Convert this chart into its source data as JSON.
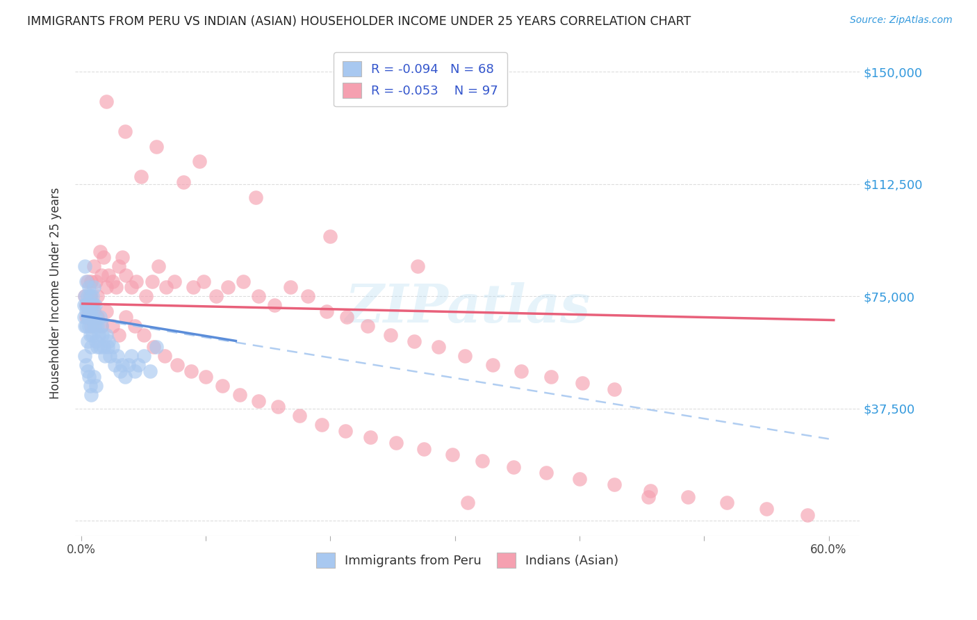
{
  "title": "IMMIGRANTS FROM PERU VS INDIAN (ASIAN) HOUSEHOLDER INCOME UNDER 25 YEARS CORRELATION CHART",
  "source": "Source: ZipAtlas.com",
  "ylabel": "Householder Income Under 25 years",
  "legend_label_1": "Immigrants from Peru",
  "legend_label_2": "Indians (Asian)",
  "r1": -0.094,
  "n1": 68,
  "r2": -0.053,
  "n2": 97,
  "xlim": [
    -0.005,
    0.625
  ],
  "ylim": [
    -5000,
    157000
  ],
  "yticks": [
    0,
    37500,
    75000,
    112500,
    150000
  ],
  "ytick_labels": [
    "",
    "$37,500",
    "$75,000",
    "$112,500",
    "$150,000"
  ],
  "xticks": [
    0.0,
    0.1,
    0.2,
    0.3,
    0.4,
    0.5,
    0.6
  ],
  "xtick_labels": [
    "0.0%",
    "",
    "",
    "",
    "",
    "",
    "60.0%"
  ],
  "color_peru": "#a8c8f0",
  "color_peru_line_solid": "#5b8dd9",
  "color_india": "#f5a0b0",
  "color_india_line": "#e8607a",
  "color_dashed": "#a8c8f0",
  "background": "#ffffff",
  "grid_color": "#dddddd",
  "watermark": "ZIPatlas",
  "peru_trend_x": [
    0.0,
    0.125
  ],
  "peru_trend_y": [
    68500,
    60000
  ],
  "india_trend_x": [
    0.0,
    0.605
  ],
  "india_trend_y": [
    72500,
    67000
  ],
  "dashed_trend_x": [
    0.0,
    0.605
  ],
  "dashed_trend_y": [
    68000,
    27000
  ],
  "peru_scatter_x": [
    0.002,
    0.002,
    0.003,
    0.003,
    0.003,
    0.004,
    0.004,
    0.004,
    0.004,
    0.005,
    0.005,
    0.005,
    0.005,
    0.006,
    0.006,
    0.006,
    0.006,
    0.007,
    0.007,
    0.007,
    0.007,
    0.008,
    0.008,
    0.008,
    0.009,
    0.009,
    0.009,
    0.01,
    0.01,
    0.01,
    0.011,
    0.011,
    0.012,
    0.012,
    0.013,
    0.013,
    0.014,
    0.015,
    0.015,
    0.016,
    0.017,
    0.018,
    0.019,
    0.02,
    0.021,
    0.022,
    0.023,
    0.025,
    0.027,
    0.029,
    0.031,
    0.033,
    0.035,
    0.038,
    0.04,
    0.043,
    0.046,
    0.05,
    0.055,
    0.06,
    0.003,
    0.004,
    0.005,
    0.006,
    0.007,
    0.008,
    0.01,
    0.012
  ],
  "peru_scatter_y": [
    72000,
    68000,
    75000,
    65000,
    85000,
    72000,
    70000,
    65000,
    80000,
    75000,
    72000,
    68000,
    60000,
    78000,
    72000,
    68000,
    65000,
    75000,
    72000,
    68000,
    62000,
    72000,
    68000,
    58000,
    75000,
    68000,
    62000,
    78000,
    72000,
    65000,
    72000,
    65000,
    68000,
    60000,
    65000,
    58000,
    62000,
    68000,
    58000,
    65000,
    62000,
    58000,
    55000,
    62000,
    58000,
    60000,
    55000,
    58000,
    52000,
    55000,
    50000,
    52000,
    48000,
    52000,
    55000,
    50000,
    52000,
    55000,
    50000,
    58000,
    55000,
    52000,
    50000,
    48000,
    45000,
    42000,
    48000,
    45000
  ],
  "india_scatter_x": [
    0.003,
    0.004,
    0.005,
    0.006,
    0.007,
    0.008,
    0.009,
    0.01,
    0.012,
    0.013,
    0.015,
    0.016,
    0.018,
    0.02,
    0.022,
    0.025,
    0.028,
    0.03,
    0.033,
    0.036,
    0.04,
    0.044,
    0.048,
    0.052,
    0.057,
    0.062,
    0.068,
    0.075,
    0.082,
    0.09,
    0.098,
    0.108,
    0.118,
    0.13,
    0.142,
    0.155,
    0.168,
    0.182,
    0.197,
    0.213,
    0.23,
    0.248,
    0.267,
    0.287,
    0.308,
    0.33,
    0.353,
    0.377,
    0.402,
    0.428,
    0.004,
    0.006,
    0.008,
    0.01,
    0.013,
    0.016,
    0.02,
    0.025,
    0.03,
    0.036,
    0.043,
    0.05,
    0.058,
    0.067,
    0.077,
    0.088,
    0.1,
    0.113,
    0.127,
    0.142,
    0.158,
    0.175,
    0.193,
    0.212,
    0.232,
    0.253,
    0.275,
    0.298,
    0.322,
    0.347,
    0.373,
    0.4,
    0.428,
    0.457,
    0.487,
    0.518,
    0.55,
    0.583,
    0.31,
    0.455,
    0.02,
    0.035,
    0.06,
    0.095,
    0.14,
    0.2,
    0.27
  ],
  "india_scatter_y": [
    75000,
    72000,
    80000,
    70000,
    75000,
    80000,
    72000,
    85000,
    80000,
    75000,
    90000,
    82000,
    88000,
    78000,
    82000,
    80000,
    78000,
    85000,
    88000,
    82000,
    78000,
    80000,
    115000,
    75000,
    80000,
    85000,
    78000,
    80000,
    113000,
    78000,
    80000,
    75000,
    78000,
    80000,
    75000,
    72000,
    78000,
    75000,
    70000,
    68000,
    65000,
    62000,
    60000,
    58000,
    55000,
    52000,
    50000,
    48000,
    46000,
    44000,
    68000,
    72000,
    65000,
    70000,
    68000,
    65000,
    70000,
    65000,
    62000,
    68000,
    65000,
    62000,
    58000,
    55000,
    52000,
    50000,
    48000,
    45000,
    42000,
    40000,
    38000,
    35000,
    32000,
    30000,
    28000,
    26000,
    24000,
    22000,
    20000,
    18000,
    16000,
    14000,
    12000,
    10000,
    8000,
    6000,
    4000,
    2000,
    6000,
    8000,
    140000,
    130000,
    125000,
    120000,
    108000,
    95000,
    85000
  ]
}
